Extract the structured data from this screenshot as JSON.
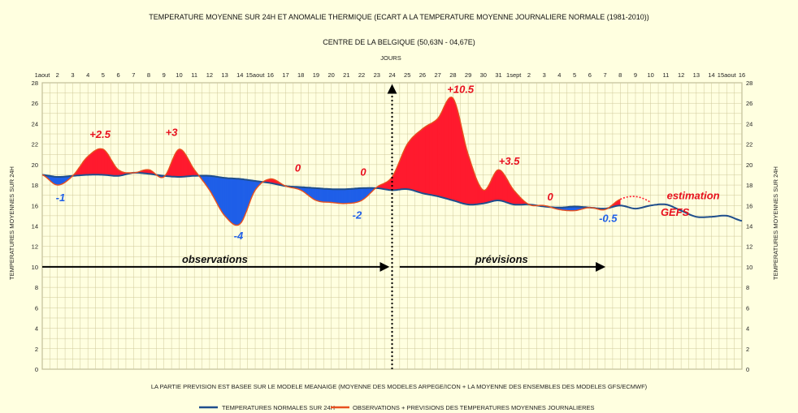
{
  "chart_data": {
    "type": "area",
    "title": "TEMPERATURE MOYENNE SUR 24H ET  ANOMALIE THERMIQUE (ECART A LA TEMPERATURE MOYENNE JOURNALIERE NORMALE (1981-2010))",
    "subtitle": "CENTRE DE LA BELGIQUE (50,63N - 04,67E)",
    "xlabel": "JOURS",
    "ylabel": "TEMPERATURES MOYENNES SUR 24H",
    "ylim": [
      0,
      28
    ],
    "yticks": [
      0,
      2,
      4,
      6,
      8,
      10,
      12,
      14,
      16,
      18,
      20,
      22,
      24,
      26,
      28
    ],
    "x_ticks": [
      "1aout",
      "2",
      "3",
      "4",
      "5",
      "6",
      "7",
      "8",
      "9",
      "10",
      "11",
      "12",
      "13",
      "14",
      "15aout",
      "16",
      "17",
      "18",
      "19",
      "20",
      "21",
      "22",
      "23",
      "24",
      "25",
      "26",
      "27",
      "28",
      "29",
      "30",
      "31",
      "1sept",
      "2",
      "3",
      "4",
      "5",
      "6",
      "7",
      "8",
      "9",
      "10",
      "11",
      "12",
      "13",
      "14",
      "15aout",
      "16"
    ],
    "series": [
      {
        "name": "TEMPERATURES NORMALES SUR 24H",
        "color": "#1f4e8c",
        "values": [
          19.0,
          18.8,
          18.9,
          19.0,
          19.0,
          18.9,
          19.2,
          19.1,
          18.9,
          18.8,
          18.9,
          18.9,
          18.7,
          18.6,
          18.4,
          18.2,
          17.9,
          17.8,
          17.7,
          17.6,
          17.6,
          17.7,
          17.7,
          17.5,
          17.6,
          17.2,
          16.9,
          16.5,
          16.1,
          16.2,
          16.5,
          16.1,
          16.1,
          15.9,
          15.8,
          15.9,
          15.8,
          15.7,
          16.0,
          15.7,
          16.0,
          16.1,
          15.5,
          14.9,
          14.9,
          15.0,
          14.5
        ]
      },
      {
        "name": "OBSERVATIONS + PREVISIONS DES TEMPERATURES MOYENNES JOURNALIERES",
        "color": "#e8501e",
        "values": [
          19.0,
          18.0,
          18.9,
          20.8,
          21.5,
          19.5,
          19.2,
          19.5,
          18.8,
          21.5,
          19.5,
          17.5,
          15.0,
          14.2,
          17.5,
          18.6,
          17.9,
          17.5,
          16.5,
          16.3,
          16.2,
          16.5,
          17.8,
          18.8,
          22.0,
          23.5,
          24.5,
          26.5,
          21.0,
          17.5,
          19.5,
          17.5,
          16.1,
          16.0,
          15.6,
          15.5,
          15.8,
          15.6,
          16.6
        ]
      }
    ],
    "estimation_values": [
      16.6,
      16.8,
      16.3
    ],
    "colors": {
      "positive": "#ff1a2e",
      "negative": "#1f5fe8",
      "background": "#ffffe0",
      "grid": "#cfc89a"
    },
    "annotations": [
      {
        "text": "-1",
        "day": 2.2,
        "y": 16.4,
        "color": "#1f5fe8"
      },
      {
        "text": "+2.5",
        "day": 4.8,
        "y": 22.6,
        "color": "#e8101e"
      },
      {
        "text": "+3",
        "day": 9.5,
        "y": 22.8,
        "color": "#e8101e"
      },
      {
        "text": "-4",
        "day": 13.9,
        "y": 12.7,
        "color": "#1f5fe8"
      },
      {
        "text": "0",
        "day": 17.8,
        "y": 19.3,
        "color": "#e8101e"
      },
      {
        "text": "0",
        "day": 22.1,
        "y": 18.9,
        "color": "#e8101e"
      },
      {
        "text": "-2",
        "day": 21.7,
        "y": 14.7,
        "color": "#1f5fe8"
      },
      {
        "text": "+10.5",
        "day": 28.5,
        "y": 27.0,
        "color": "#e8101e"
      },
      {
        "text": "+3.5",
        "day": 31.7,
        "y": 20.0,
        "color": "#e8101e"
      },
      {
        "text": "0",
        "day": 34.4,
        "y": 16.5,
        "color": "#e8101e"
      },
      {
        "text": "-0.5",
        "day": 38.2,
        "y": 14.4,
        "color": "#1f5fe8"
      },
      {
        "text": "estimation",
        "day": 43.8,
        "y": 16.6,
        "color": "#e8101e"
      },
      {
        "text": "GEFS",
        "day": 42.6,
        "y": 15.0,
        "color": "#e8101e"
      }
    ],
    "arrows": [
      {
        "label": "observations",
        "from_day": 1,
        "to_day": 23.7,
        "y": 10
      },
      {
        "label": "prévisions",
        "from_day": 24.5,
        "to_day": 37.9,
        "y": 10
      }
    ],
    "today_marker_day": 24,
    "footnote": "LA PARTIE PREVISION EST BASEE SUR LE MODELE MEANAIGE (MOYENNE DES MODELES ARPEGE/ICON + LA MOYENNE DES ENSEMBLES DES MODELES GFS/ECMWF)",
    "legend_position": "bottom"
  }
}
